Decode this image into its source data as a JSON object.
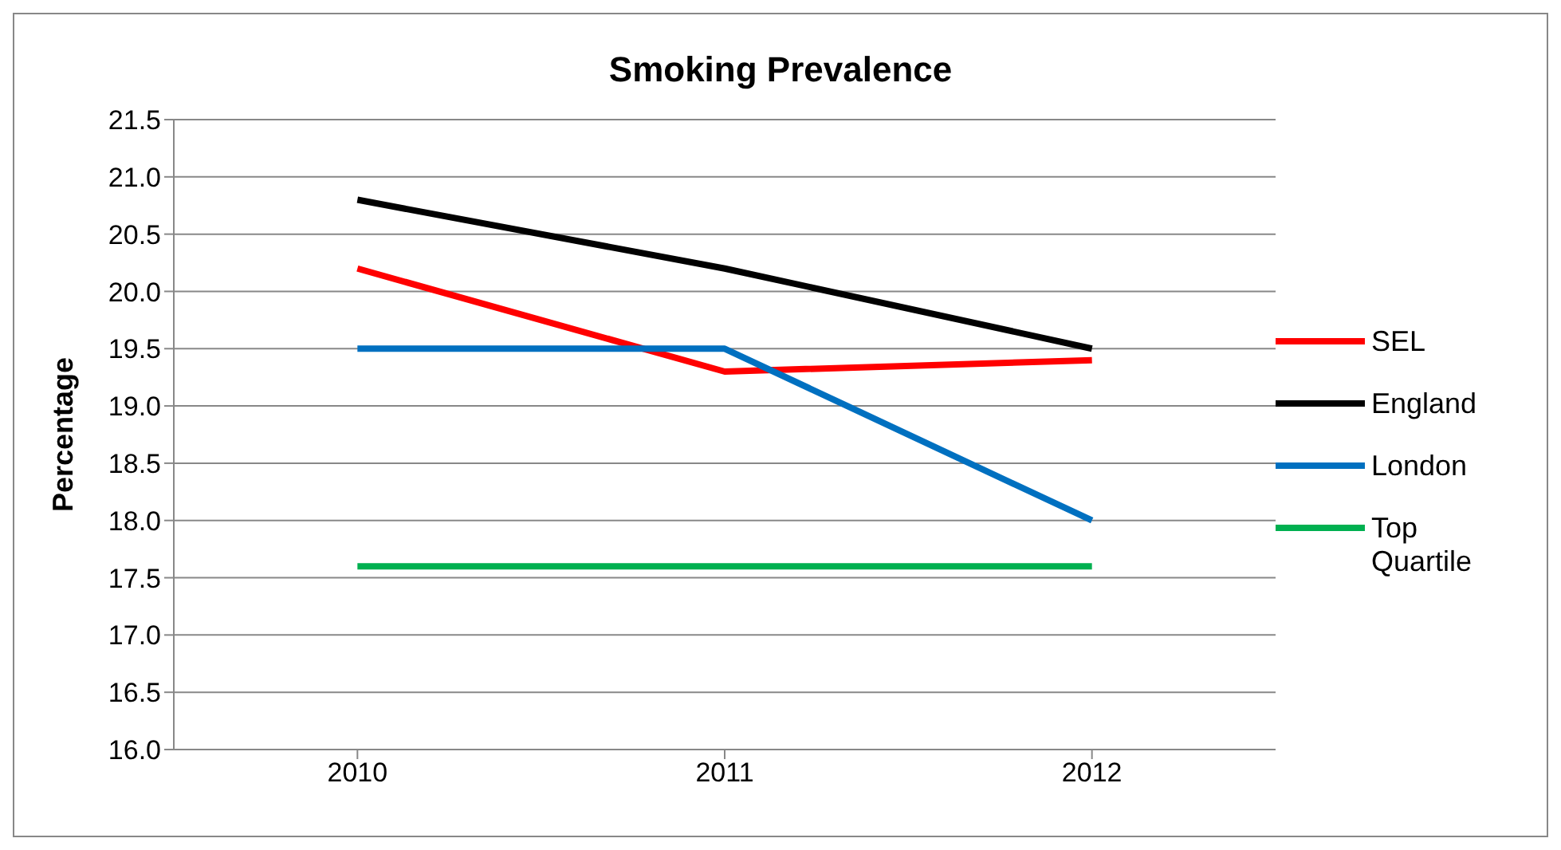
{
  "chart_data": {
    "type": "line",
    "title": "Smoking Prevalence",
    "ylabel": "Percentage",
    "categories": [
      "2010",
      "2011",
      "2012"
    ],
    "series": [
      {
        "name": "SEL",
        "color": "#ff0000",
        "values": [
          20.2,
          19.3,
          19.4
        ]
      },
      {
        "name": "England",
        "color": "#000000",
        "values": [
          20.8,
          20.2,
          19.5
        ]
      },
      {
        "name": "London",
        "color": "#0070c0",
        "values": [
          19.5,
          19.5,
          18.0
        ]
      },
      {
        "name": "Top Quartile",
        "color": "#00b050",
        "values": [
          17.6,
          17.6,
          17.6
        ]
      }
    ],
    "ylim": [
      16,
      21.5
    ],
    "yticks": [
      {
        "value": 16,
        "label": "16.0"
      },
      16.5,
      {
        "value": 17,
        "label": "17.0"
      },
      17.5,
      {
        "value": 18,
        "label": "18.0"
      },
      18.5,
      {
        "value": 19,
        "label": "19.0"
      },
      19.5,
      {
        "value": 20,
        "label": "20.0"
      },
      20.5,
      {
        "value": 21,
        "label": "21.0"
      },
      21.5
    ],
    "grid": "y",
    "legend": "right",
    "marker": "none"
  }
}
